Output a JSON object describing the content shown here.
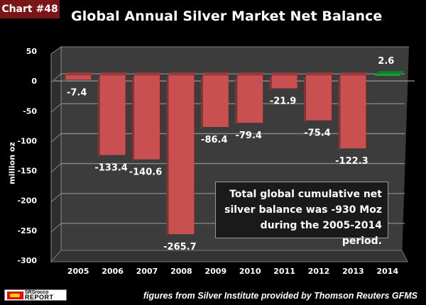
{
  "badge": "Chart #48",
  "title": "Global Annual Silver Market Net Balance",
  "annotation": {
    "lines": [
      "Total global cumulative net",
      "silver balance was -930 Moz",
      "during the 2005-2014 period."
    ]
  },
  "logo": {
    "line1": "SRSrocco",
    "line2": "REPORT"
  },
  "source": "figures from Silver Institute provided by Thomson Reuters GFMS",
  "colors": {
    "negative": "#c85050",
    "positive": "#1a9a3a",
    "panel": "#3c3c3c",
    "badge": "#7a1518"
  },
  "chart_data": {
    "type": "bar",
    "title": "Global Annual Silver Market Net Balance",
    "xlabel": "",
    "ylabel": "million oz",
    "ylim": [
      -300,
      50
    ],
    "yticks": [
      50,
      0,
      -50,
      -100,
      -150,
      -200,
      -250,
      -300
    ],
    "grid": true,
    "categories": [
      "2005",
      "2006",
      "2007",
      "2008",
      "2009",
      "2010",
      "2011",
      "2012",
      "2013",
      "2014"
    ],
    "values": [
      -7.4,
      -133.4,
      -140.6,
      -265.7,
      -86.4,
      -79.4,
      -21.9,
      -75.4,
      -122.3,
      2.6
    ],
    "data_labels": [
      "-7.4",
      "-133.4",
      "-140.6",
      "-265.7",
      "-86.4",
      "-79.4",
      "-21.9",
      "-75.4",
      "-122.3",
      "2.6"
    ]
  }
}
